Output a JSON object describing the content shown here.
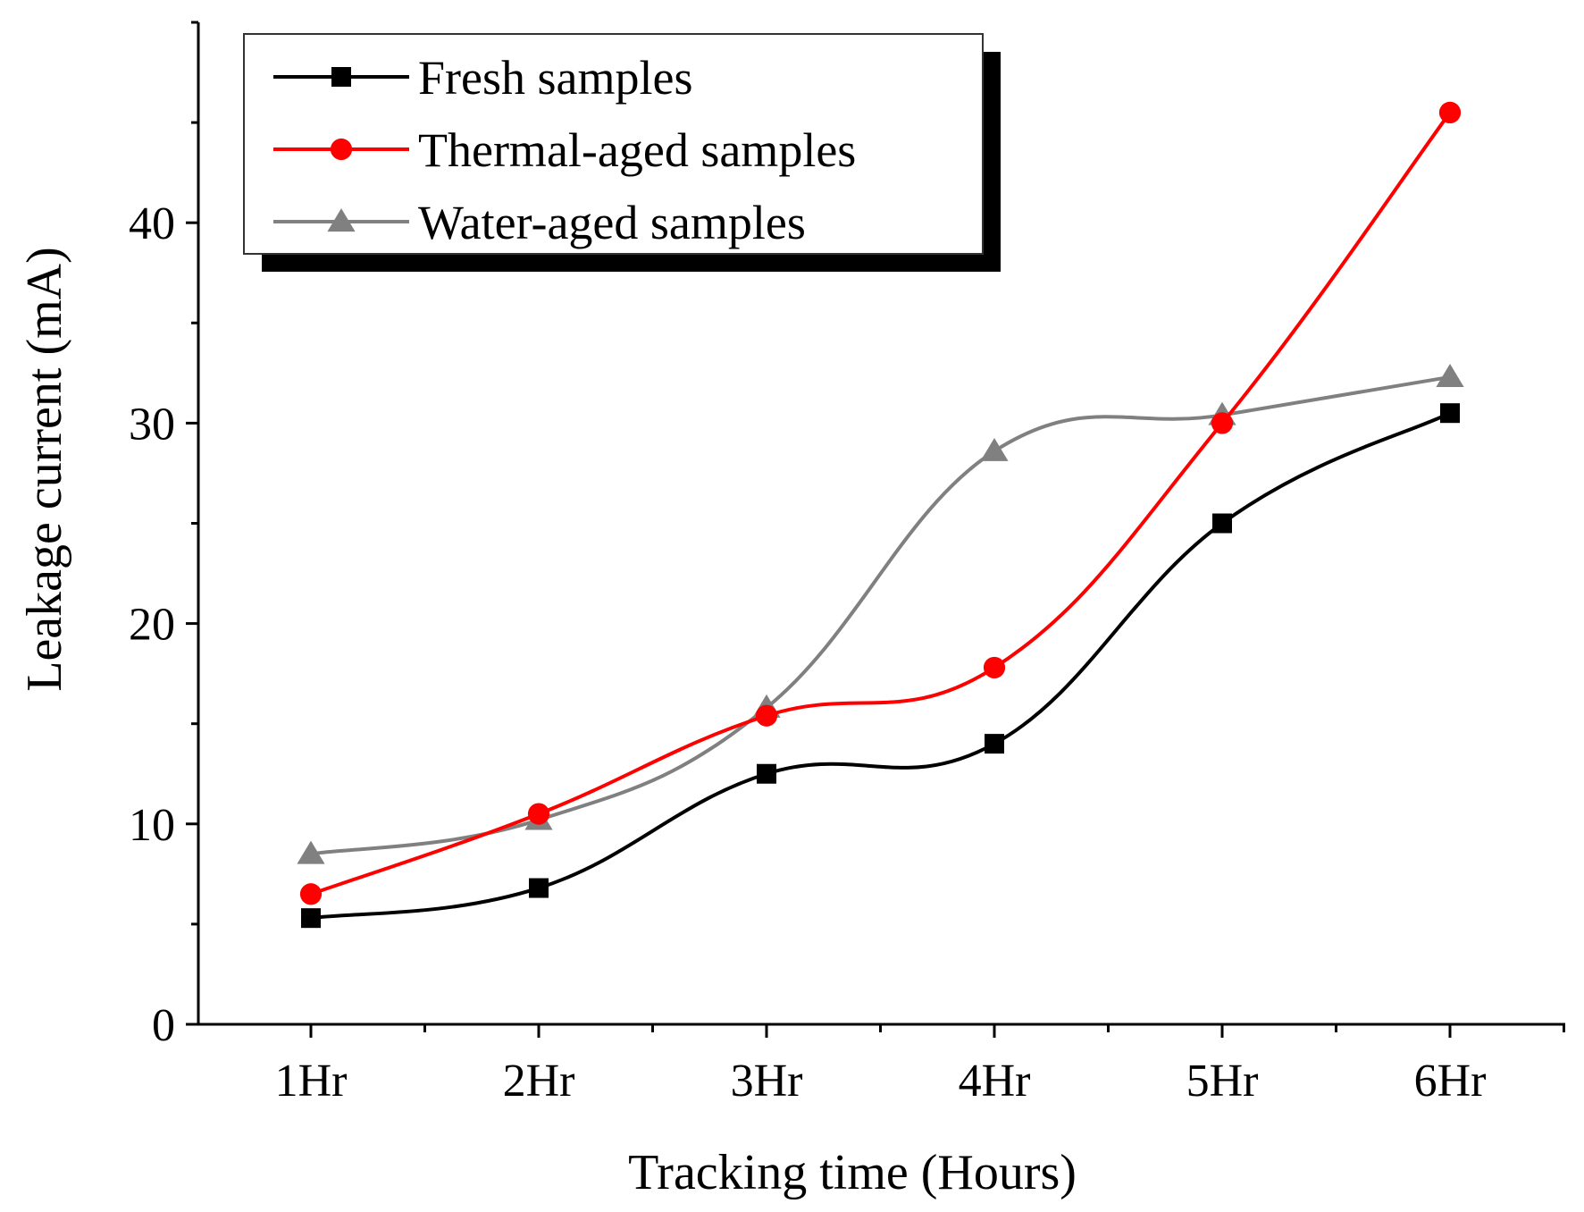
{
  "chart_data": {
    "type": "line",
    "title": "",
    "xlabel": "Tracking time (Hours)",
    "ylabel": "Leakage current (mA)",
    "categories": [
      "1Hr",
      "2Hr",
      "3Hr",
      "4Hr",
      "5Hr",
      "6Hr"
    ],
    "ylim": [
      0,
      50
    ],
    "yticks": [
      0,
      10,
      20,
      30,
      40
    ],
    "grid": false,
    "legend_position": "top-left",
    "series": [
      {
        "name": "Fresh samples",
        "color": "#000000",
        "marker": "square",
        "values": [
          5.3,
          6.8,
          12.5,
          14.0,
          25.0,
          30.5
        ]
      },
      {
        "name": "Thermal-aged samples",
        "color": "#ff0000",
        "marker": "circle",
        "values": [
          6.5,
          10.5,
          15.4,
          17.8,
          30.0,
          45.5
        ]
      },
      {
        "name": "Water-aged samples",
        "color": "#808080",
        "marker": "triangle",
        "values": [
          8.5,
          10.2,
          15.8,
          28.6,
          30.4,
          32.3
        ]
      }
    ]
  }
}
